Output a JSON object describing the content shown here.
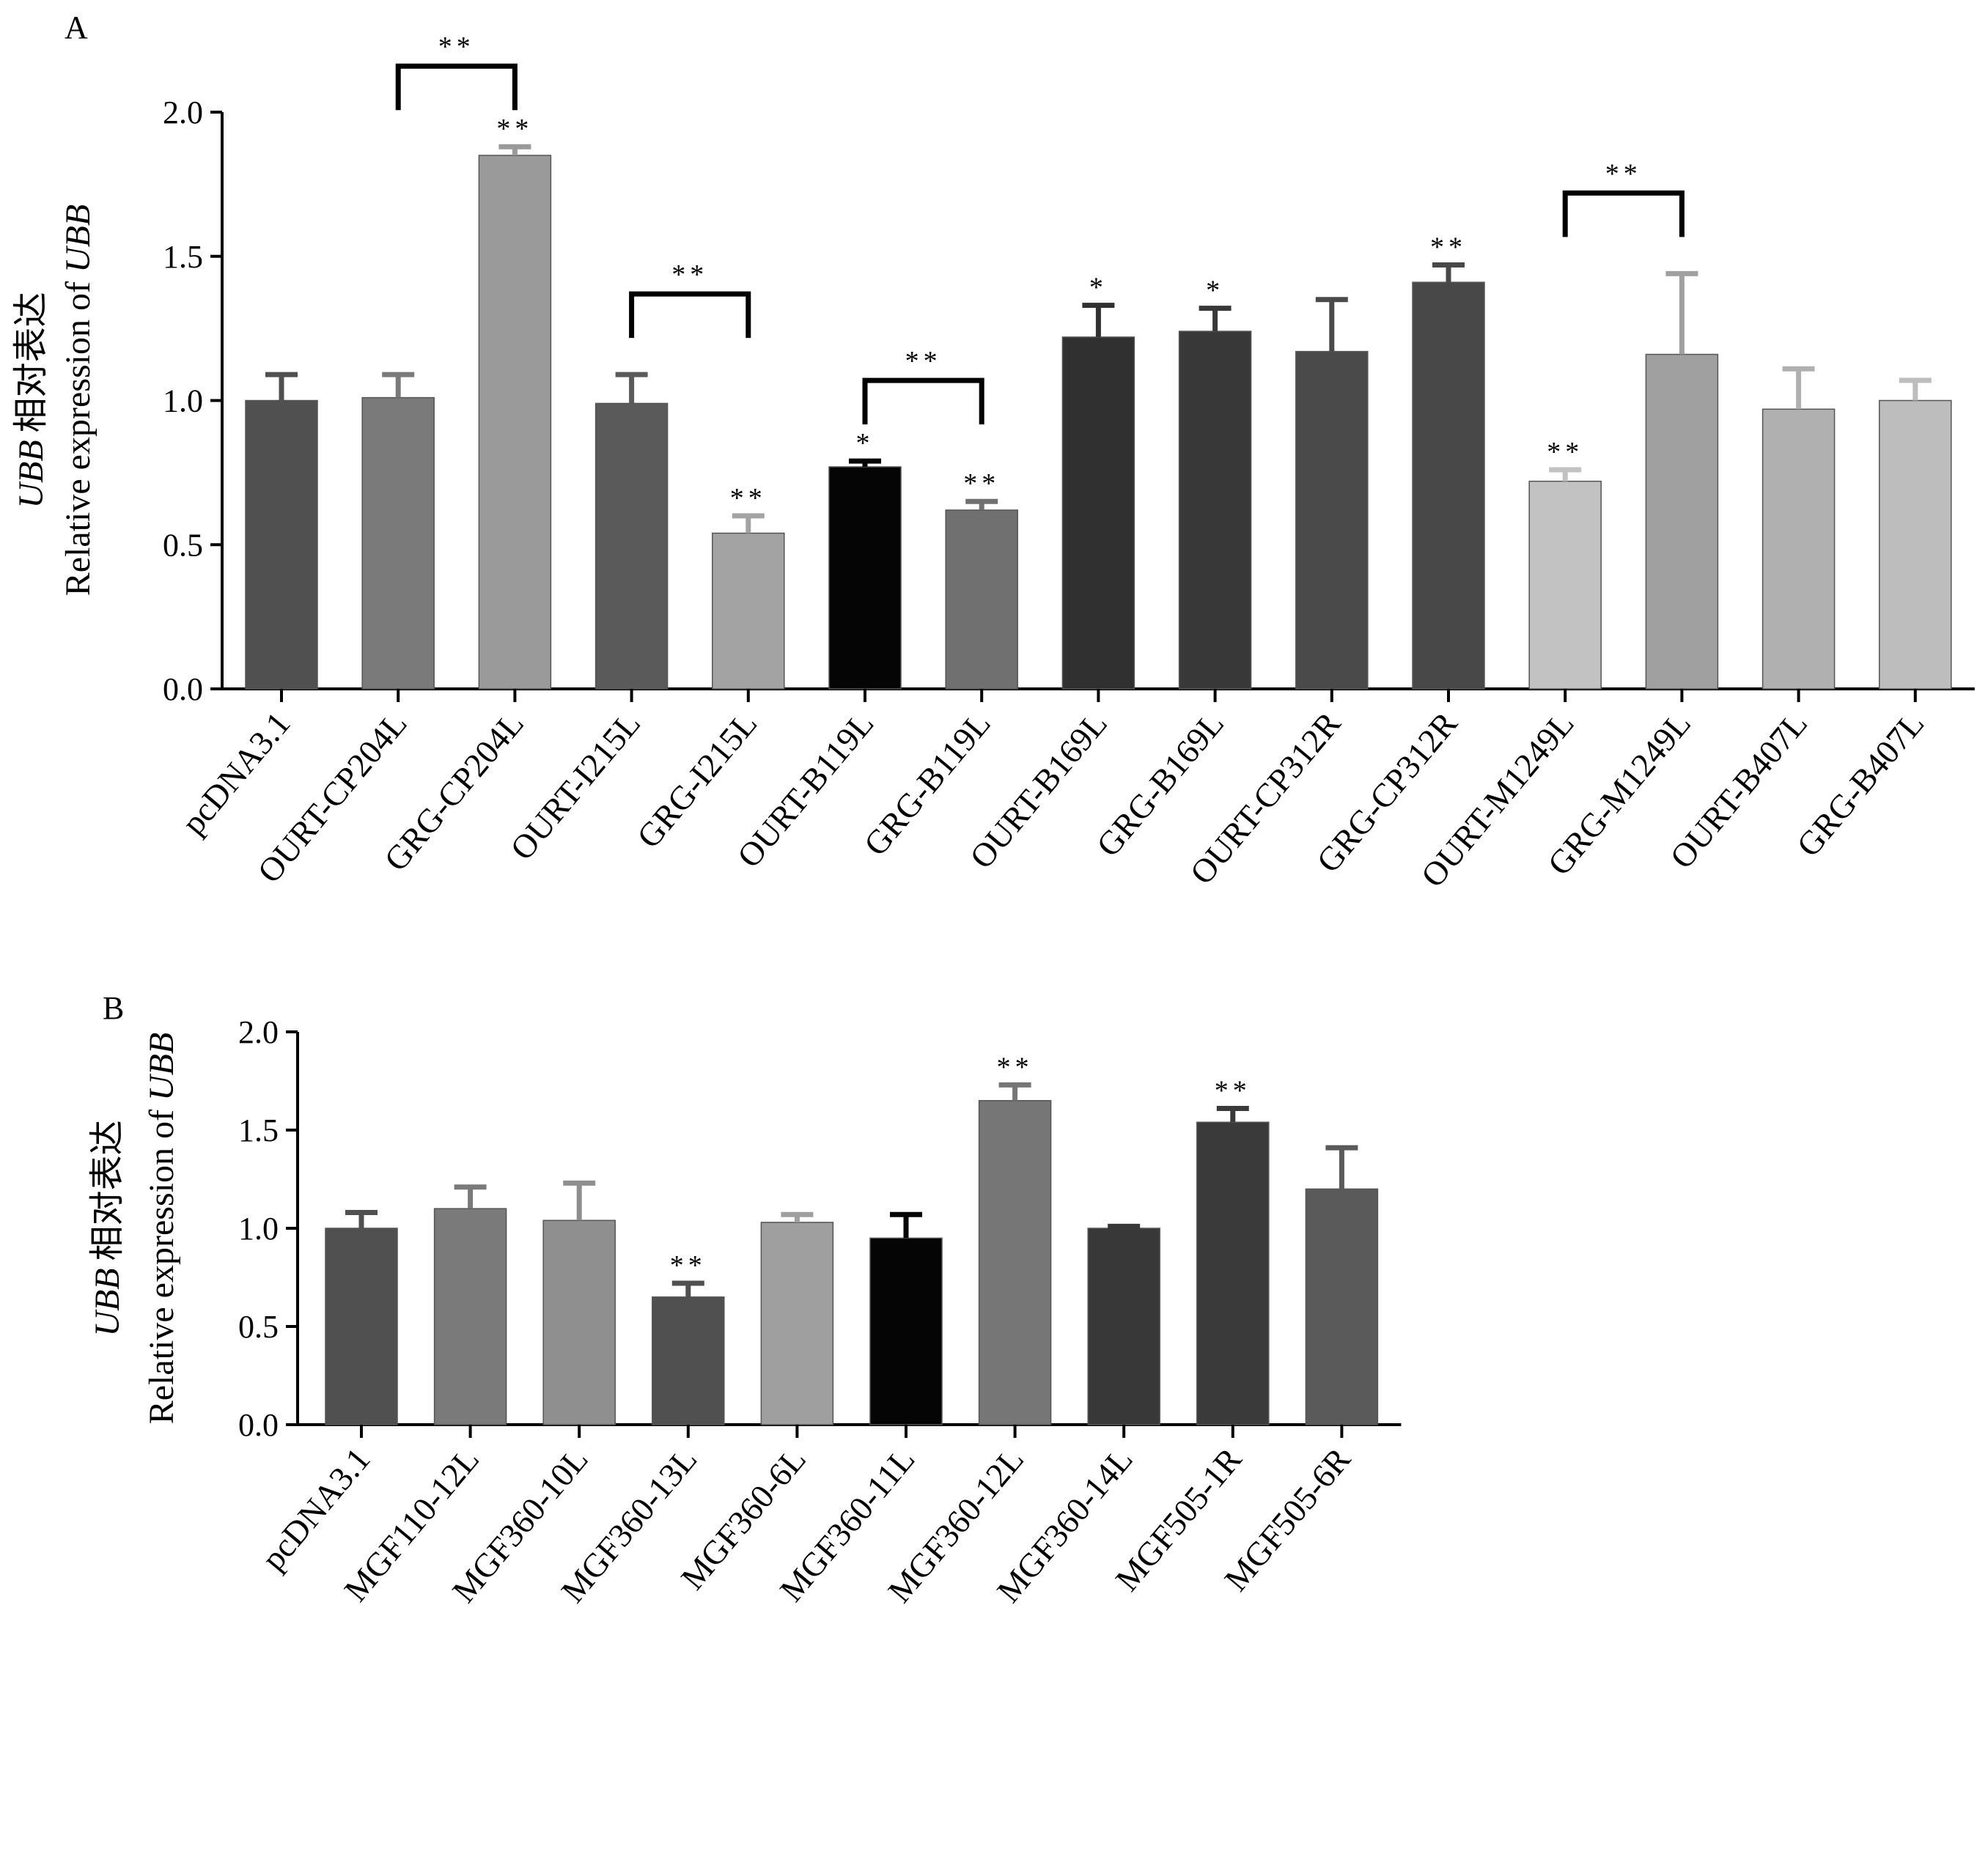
{
  "chart_data": [
    {
      "panel": "A",
      "type": "bar",
      "ylabel_gene": "UBB",
      "ylabel_cn": "相对表达",
      "ylabel_en_prefix": "Relative expression of ",
      "ylabel_en_gene": "UBB",
      "ylim": [
        0,
        2.0
      ],
      "yticks": [
        "0.0",
        "0.5",
        "1.0",
        "1.5",
        "2.0"
      ],
      "categories": [
        "pcDNA3.1",
        "OURT-CP204L",
        "GRG-CP204L",
        "OURT-I215L",
        "GRG-I215L",
        "OURT-B119L",
        "GRG-B119L",
        "OURT-B169L",
        "GRG-B169L",
        "OURT-CP312R",
        "GRG-CP312R",
        "OURT-M1249L",
        "GRG-M1249L",
        "OURT-B407L",
        "GRG-B407L"
      ],
      "values": [
        1.0,
        1.01,
        1.85,
        0.99,
        0.54,
        0.77,
        0.62,
        1.22,
        1.24,
        1.17,
        1.41,
        0.72,
        1.16,
        0.97,
        1.0
      ],
      "errors": [
        0.09,
        0.08,
        0.03,
        0.1,
        0.06,
        0.02,
        0.03,
        0.11,
        0.08,
        0.18,
        0.06,
        0.04,
        0.28,
        0.14,
        0.07
      ],
      "colors": [
        "#505050",
        "#7a7a7a",
        "#9a9a9a",
        "#5a5a5a",
        "#a3a3a3",
        "#050505",
        "#707070",
        "#303030",
        "#383838",
        "#4a4a4a",
        "#484848",
        "#c2c2c2",
        "#a0a0a0",
        "#b0b0b0",
        "#bdbdbd"
      ],
      "significance": [
        "",
        "",
        "**",
        "",
        "**",
        "*",
        "**",
        "*",
        "*",
        "",
        "**",
        "**",
        "",
        "",
        ""
      ],
      "brackets": [
        {
          "from": 1,
          "to": 2,
          "label": "**"
        },
        {
          "from": 3,
          "to": 4,
          "label": "**"
        },
        {
          "from": 5,
          "to": 6,
          "label": "**"
        },
        {
          "from": 11,
          "to": 12,
          "label": "**"
        }
      ]
    },
    {
      "panel": "B",
      "type": "bar",
      "ylabel_gene": "UBB",
      "ylabel_cn": "相对表达",
      "ylabel_en_prefix": "Relative expression of ",
      "ylabel_en_gene": "UBB",
      "ylim": [
        0,
        2.0
      ],
      "yticks": [
        "0.0",
        "0.5",
        "1.0",
        "1.5",
        "2.0"
      ],
      "categories": [
        "pcDNA3.1",
        "MGF110-12L",
        "MGF360-10L",
        "MGF360-13L",
        "MGF360-6L",
        "MGF360-11L",
        "MGF360-12L",
        "MGF360-14L",
        "MGF505-1R",
        "MGF505-6R"
      ],
      "values": [
        1.0,
        1.1,
        1.04,
        0.65,
        1.03,
        0.95,
        1.65,
        1.0,
        1.54,
        1.2
      ],
      "errors": [
        0.08,
        0.11,
        0.19,
        0.07,
        0.04,
        0.12,
        0.08,
        0.01,
        0.07,
        0.21
      ],
      "colors": [
        "#505050",
        "#7a7a7a",
        "#8f8f8f",
        "#505050",
        "#9f9f9f",
        "#050505",
        "#767676",
        "#383838",
        "#3a3a3a",
        "#5a5a5a"
      ],
      "significance": [
        "",
        "",
        "",
        "**",
        "",
        "",
        "**",
        "",
        "**",
        ""
      ],
      "brackets": []
    }
  ]
}
